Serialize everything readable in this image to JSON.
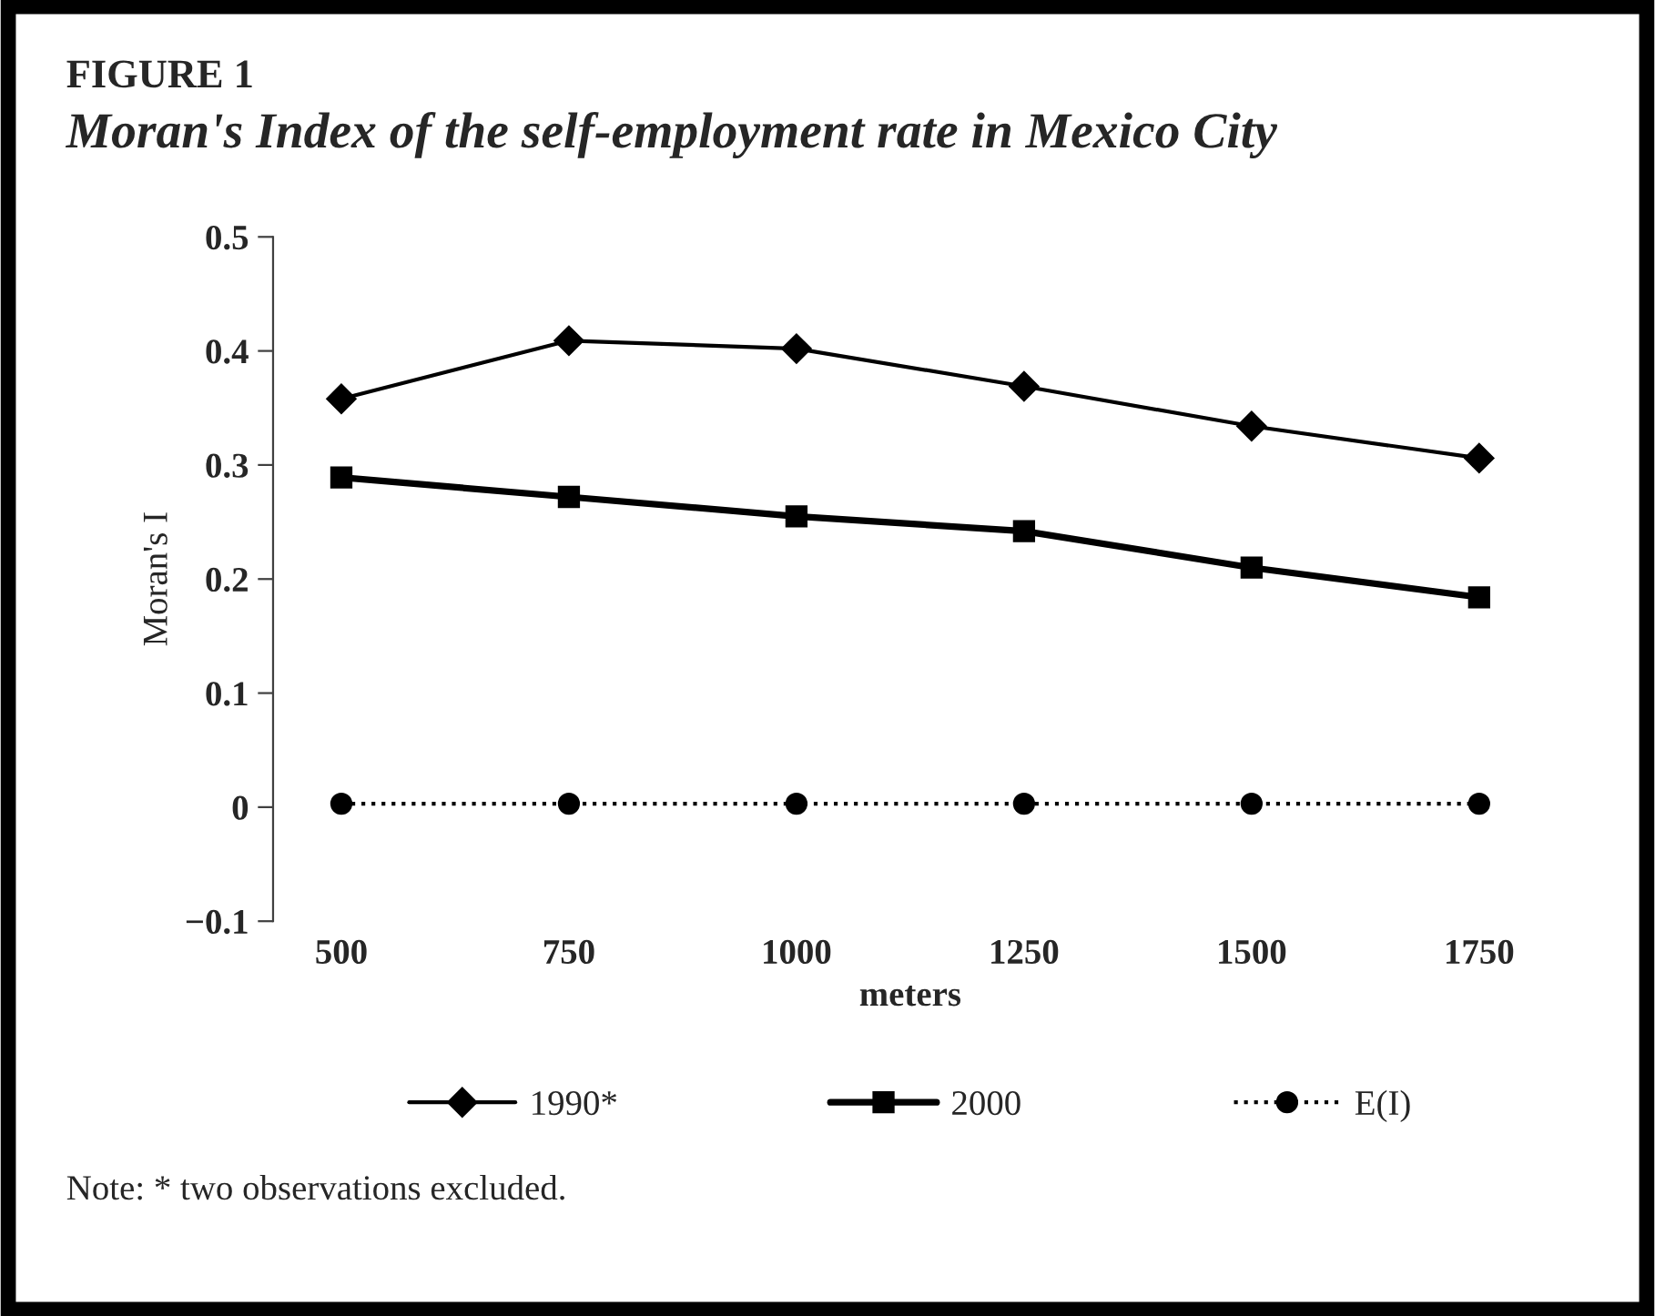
{
  "chart_data": {
    "type": "line",
    "title": "FIGURE 1",
    "subtitle": "Moran's Index of the self-employment rate in Mexico City",
    "xlabel": "meters",
    "ylabel": "Moran's I",
    "categories": [
      "500",
      "750",
      "1000",
      "1250",
      "1500",
      "1750"
    ],
    "series": [
      {
        "name": "1990*",
        "color": "#000000",
        "marker": "diamond",
        "line_style": "solid",
        "values": [
          0.358,
          0.409,
          0.402,
          0.369,
          0.334,
          0.306
        ]
      },
      {
        "name": "2000",
        "color": "#000000",
        "marker": "square",
        "line_style": "solid",
        "values": [
          0.289,
          0.272,
          0.255,
          0.242,
          0.21,
          0.184
        ]
      },
      {
        "name": "E(I)",
        "color": "#000000",
        "marker": "circle",
        "line_style": "dotted",
        "values": [
          0.003,
          0.003,
          0.003,
          0.003,
          0.003,
          0.003
        ]
      }
    ],
    "ylim": [
      -0.1,
      0.5
    ],
    "yticks": [
      {
        "value": -0.1,
        "label": "−0.1"
      },
      0,
      0.1,
      0.2,
      0.3,
      0.4,
      0.5
    ],
    "grid": false,
    "legend": "bottom",
    "annotations": [
      "Note: * two observations excluded."
    ]
  }
}
